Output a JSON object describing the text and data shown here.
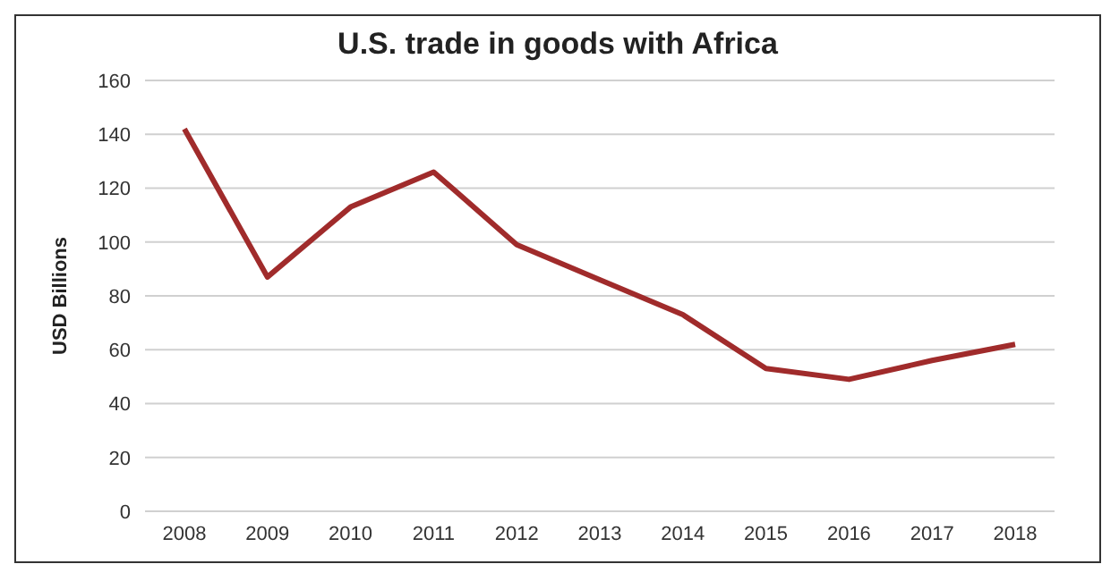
{
  "chart_data": {
    "type": "line",
    "title": "U.S. trade in goods with Africa",
    "ylabel": "USD Billions",
    "categories": [
      "2008",
      "2009",
      "2010",
      "2011",
      "2012",
      "2013",
      "2014",
      "2015",
      "2016",
      "2017",
      "2018"
    ],
    "series": [
      {
        "color": "#a02b2b",
        "values": [
          142,
          87,
          113,
          126,
          99,
          86,
          73,
          53,
          49,
          56,
          62
        ]
      }
    ],
    "ylim": [
      0,
      160
    ],
    "yticks": [
      0,
      20,
      40,
      60,
      80,
      100,
      120,
      140,
      160
    ],
    "grid": "y",
    "legend": false,
    "marker": "none",
    "line_style": "solid"
  }
}
